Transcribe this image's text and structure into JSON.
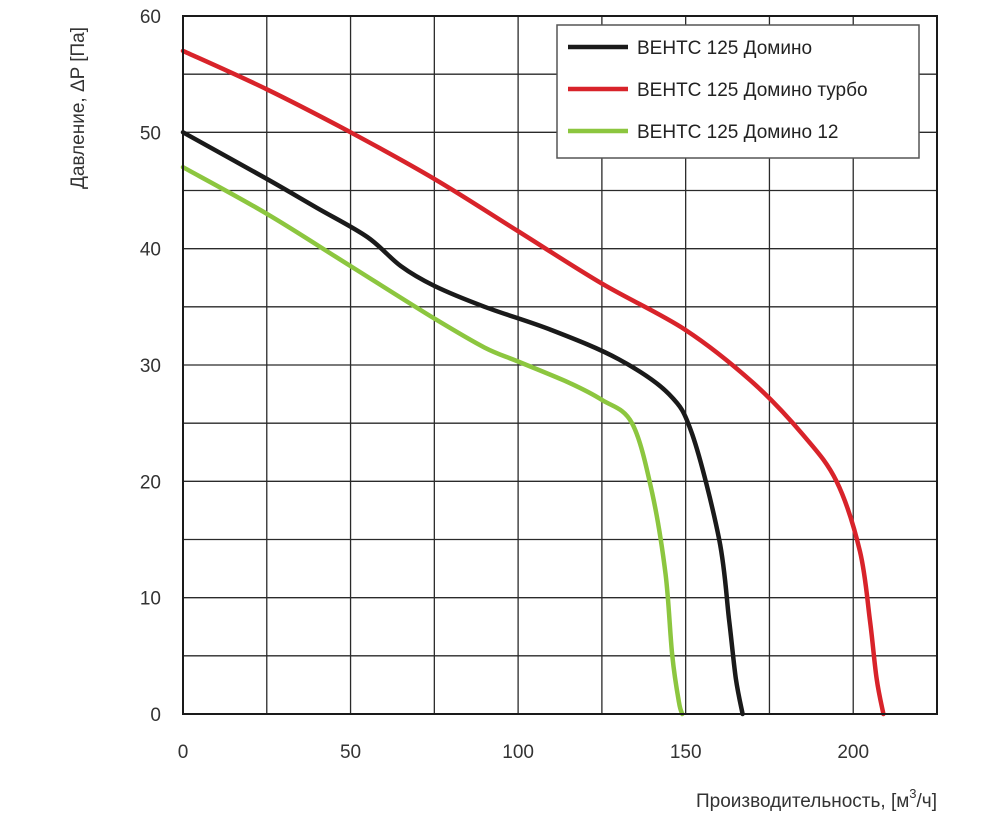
{
  "chart_data": {
    "type": "line",
    "xlabel": "Производительность, [м",
    "xlabel_sup": "3",
    "xlabel_tail": "/ч]",
    "ylabel": "Давление, ΔP [Па]",
    "xlim": [
      0,
      225
    ],
    "ylim": [
      0,
      60
    ],
    "xticks": [
      0,
      50,
      100,
      150,
      200
    ],
    "yticks": [
      0,
      10,
      20,
      30,
      40,
      50,
      60
    ],
    "grid": true,
    "legend_position": "top-right",
    "series": [
      {
        "name": "ВЕНТС 125 Домино",
        "color": "#1a1a1a",
        "x": [
          0,
          25,
          40,
          55,
          65,
          75,
          90,
          110,
          130,
          145,
          152,
          160,
          163,
          165,
          167
        ],
        "y": [
          50,
          46,
          43.5,
          41,
          38.5,
          36.8,
          35,
          33,
          30.5,
          27.5,
          24,
          15,
          8,
          3,
          0
        ]
      },
      {
        "name": "ВЕНТС 125 Домино турбо",
        "color": "#d8232a",
        "x": [
          0,
          25,
          50,
          75,
          100,
          125,
          150,
          170,
          185,
          195,
          202,
          205,
          207,
          209
        ],
        "y": [
          57,
          53.7,
          50,
          46,
          41.5,
          37,
          33,
          28.5,
          24,
          20,
          14,
          8,
          3,
          0
        ]
      },
      {
        "name": "ВЕНТС 125 Домино 12",
        "color": "#8cc63f",
        "x": [
          0,
          25,
          50,
          75,
          90,
          100,
          115,
          125,
          134,
          140,
          144,
          146,
          148,
          149
        ],
        "y": [
          47,
          43,
          38.5,
          34,
          31.5,
          30.3,
          28.5,
          27,
          25,
          19,
          12,
          5,
          1,
          0
        ]
      }
    ]
  }
}
